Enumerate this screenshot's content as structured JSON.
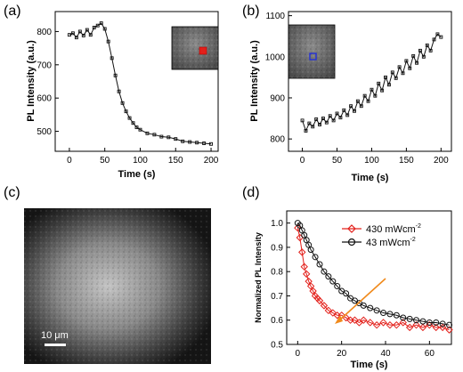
{
  "panels": {
    "a": {
      "label": "(a)"
    },
    "b": {
      "label": "(b)"
    },
    "c": {
      "label": "(c)",
      "scale_bar": "10 μm"
    },
    "d": {
      "label": "(d)"
    }
  },
  "colors": {
    "red": "#e3201b",
    "black": "#111111",
    "blue": "#2430d8",
    "arrow": "#f08a1c"
  },
  "chart_data": [
    {
      "id": "a",
      "type": "line",
      "xlabel": "Time (s)",
      "ylabel": "PL Intensity (a.u.)",
      "xlim": [
        -20,
        210
      ],
      "ylim": [
        440,
        860
      ],
      "xticks": [
        0,
        50,
        100,
        150,
        200
      ],
      "yticks": [
        500,
        600,
        700,
        800
      ],
      "x": [
        0,
        5,
        10,
        15,
        20,
        25,
        30,
        35,
        40,
        45,
        50,
        55,
        60,
        65,
        70,
        75,
        80,
        85,
        90,
        95,
        100,
        110,
        120,
        130,
        140,
        150,
        160,
        170,
        180,
        190,
        200
      ],
      "y": [
        790,
        795,
        782,
        800,
        788,
        805,
        790,
        812,
        818,
        825,
        808,
        770,
        720,
        668,
        620,
        585,
        560,
        540,
        525,
        512,
        505,
        494,
        490,
        484,
        482,
        477,
        470,
        468,
        466,
        464,
        462
      ],
      "marker": "open-square",
      "inset": "fluorescence micrograph with red square marker"
    },
    {
      "id": "b",
      "type": "line",
      "xlabel": "Time (s)",
      "ylabel": "PL Intensity (a.u.)",
      "xlim": [
        -20,
        215
      ],
      "ylim": [
        770,
        1110
      ],
      "xticks": [
        0,
        50,
        100,
        150,
        200
      ],
      "yticks": [
        800,
        900,
        1000,
        1100
      ],
      "x": [
        0,
        5,
        10,
        15,
        20,
        25,
        30,
        35,
        40,
        45,
        50,
        55,
        60,
        65,
        70,
        75,
        80,
        85,
        90,
        95,
        100,
        105,
        110,
        115,
        120,
        125,
        130,
        135,
        140,
        145,
        150,
        155,
        160,
        165,
        170,
        175,
        180,
        185,
        190,
        195,
        200
      ],
      "y": [
        845,
        820,
        838,
        830,
        848,
        835,
        850,
        840,
        856,
        845,
        862,
        852,
        870,
        858,
        880,
        868,
        892,
        880,
        905,
        892,
        920,
        905,
        935,
        918,
        950,
        932,
        962,
        948,
        975,
        960,
        990,
        972,
        1002,
        985,
        1015,
        1000,
        1028,
        1015,
        1042,
        1055,
        1048
      ],
      "marker": "open-square",
      "inset": "fluorescence micrograph with blue square marker"
    },
    {
      "id": "d",
      "type": "line",
      "xlabel": "Time (s)",
      "ylabel": "Normalized PL Intensity",
      "xlim": [
        -5,
        70
      ],
      "ylim": [
        0.5,
        1.05
      ],
      "xticks": [
        0,
        20,
        40,
        60
      ],
      "yticks": [
        0.5,
        0.6,
        0.7,
        0.8,
        0.9,
        1.0
      ],
      "legend_position": "top-right",
      "series": [
        {
          "name": "430 mWcm",
          "name_sup": "-2",
          "color": "#e3201b",
          "marker": "open-diamond",
          "x": [
            0,
            1,
            2,
            3,
            4,
            5,
            6,
            7,
            8,
            9,
            10,
            12,
            14,
            16,
            18,
            20,
            22,
            24,
            26,
            28,
            30,
            33,
            36,
            39,
            42,
            45,
            48,
            51,
            54,
            57,
            60,
            63,
            66,
            69
          ],
          "y": [
            0.98,
            0.94,
            0.88,
            0.82,
            0.79,
            0.76,
            0.74,
            0.72,
            0.7,
            0.69,
            0.68,
            0.66,
            0.64,
            0.63,
            0.62,
            0.62,
            0.61,
            0.6,
            0.6,
            0.59,
            0.6,
            0.59,
            0.58,
            0.59,
            0.58,
            0.58,
            0.59,
            0.57,
            0.58,
            0.57,
            0.58,
            0.57,
            0.57,
            0.56
          ]
        },
        {
          "name": "43 mWcm",
          "name_sup": "-2",
          "color": "#111111",
          "marker": "open-circle",
          "x": [
            0,
            1,
            2,
            3,
            4,
            5,
            6,
            8,
            10,
            12,
            14,
            16,
            18,
            20,
            22,
            24,
            26,
            28,
            30,
            33,
            36,
            39,
            42,
            45,
            48,
            51,
            54,
            57,
            60,
            63,
            66,
            69
          ],
          "y": [
            1.0,
            0.99,
            0.97,
            0.95,
            0.93,
            0.91,
            0.89,
            0.86,
            0.83,
            0.8,
            0.78,
            0.76,
            0.74,
            0.72,
            0.71,
            0.69,
            0.68,
            0.67,
            0.66,
            0.65,
            0.64,
            0.63,
            0.625,
            0.62,
            0.61,
            0.605,
            0.6,
            0.595,
            0.59,
            0.59,
            0.585,
            0.58
          ]
        }
      ]
    }
  ]
}
